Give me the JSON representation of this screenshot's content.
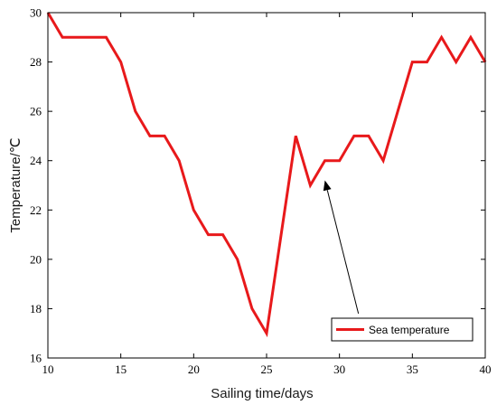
{
  "chart_data": {
    "type": "line",
    "xlabel": "Sailing time/days",
    "ylabel": "Temperature/℃",
    "xlim": [
      10,
      40
    ],
    "ylim": [
      16,
      30
    ],
    "xticks": [
      10,
      15,
      20,
      25,
      30,
      35,
      40
    ],
    "yticks": [
      16,
      18,
      20,
      22,
      24,
      26,
      28,
      30
    ],
    "grid": false,
    "legend_position": "bottom-right",
    "series": [
      {
        "name": "Sea temperature",
        "color": "#e8191b",
        "x": [
          10,
          11,
          12,
          13,
          14,
          15,
          16,
          17,
          18,
          19,
          20,
          21,
          22,
          23,
          24,
          25,
          26,
          27,
          28,
          29,
          30,
          31,
          32,
          33,
          34,
          35,
          36,
          37,
          38,
          39,
          40
        ],
        "y": [
          30,
          29,
          29,
          29,
          29,
          28,
          26,
          25,
          25,
          24,
          22,
          21,
          21,
          20,
          18,
          17,
          21,
          25,
          23,
          24,
          24,
          25,
          25,
          24,
          26,
          28,
          28,
          29,
          28,
          29,
          28
        ]
      }
    ],
    "annotations": [
      {
        "type": "arrow",
        "from": [
          31.3,
          17.8
        ],
        "to": [
          29.0,
          23.2
        ]
      }
    ]
  }
}
